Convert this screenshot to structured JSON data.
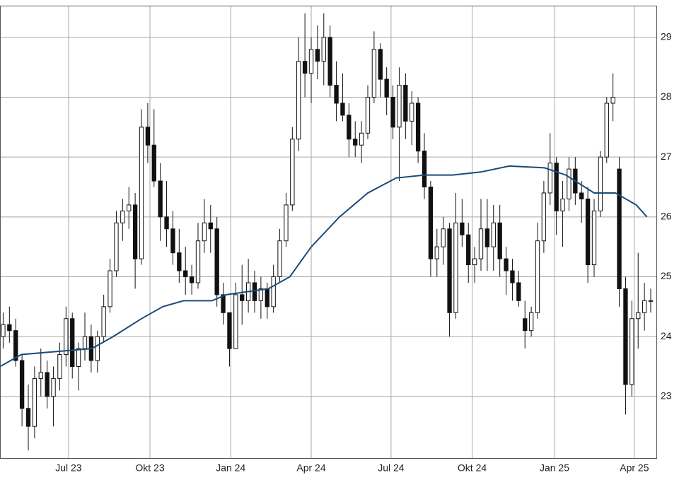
{
  "chart_data": {
    "type": "candlestick",
    "xlim": [
      0,
      104.4
    ],
    "ylim": [
      21.97,
      29.53
    ],
    "grid": true,
    "xticks": [
      {
        "value": 10.9,
        "label": "Jul 23"
      },
      {
        "value": 23.85,
        "label": "Okt 23"
      },
      {
        "value": 36.7,
        "label": "Jan 24"
      },
      {
        "value": 49.5,
        "label": "Apr 24"
      },
      {
        "value": 62.2,
        "label": "Jul 24"
      },
      {
        "value": 75.1,
        "label": "Okt 24"
      },
      {
        "value": 88.2,
        "label": "Jan 25"
      },
      {
        "value": 100.9,
        "label": "Apr 25"
      }
    ],
    "yticks": [
      23,
      24,
      25,
      26,
      27,
      28,
      29
    ],
    "up_color": "#ffffff",
    "down_color": "#111111",
    "x": [
      0.5,
      1.5,
      2.5,
      3.5,
      4.5,
      5.5,
      6.5,
      7.5,
      8.5,
      9.5,
      10.5,
      11.5,
      12.5,
      13.5,
      14.5,
      15.5,
      16.5,
      17.5,
      18.5,
      19.5,
      20.5,
      21.5,
      22.5,
      23.5,
      24.5,
      25.5,
      26.5,
      27.5,
      28.5,
      29.5,
      30.5,
      31.5,
      32.5,
      33.5,
      34.5,
      35.5,
      36.5,
      37.5,
      38.5,
      39.5,
      40.5,
      41.5,
      42.5,
      43.5,
      44.5,
      45.5,
      46.5,
      47.5,
      48.5,
      49.5,
      50.5,
      51.5,
      52.5,
      53.5,
      54.5,
      55.5,
      56.5,
      57.5,
      58.5,
      59.5,
      60.5,
      61.5,
      62.5,
      63.5,
      64.5,
      65.5,
      66.5,
      67.5,
      68.5,
      69.5,
      70.5,
      71.5,
      72.5,
      73.5,
      74.5,
      75.5,
      76.5,
      77.5,
      78.5,
      79.5,
      80.5,
      81.5,
      82.5,
      83.5,
      84.5,
      85.5,
      86.5,
      87.5,
      88.5,
      89.5,
      90.5,
      91.5,
      92.5,
      93.5,
      94.5,
      95.5,
      96.5,
      97.5,
      98.5,
      99.5,
      100.5,
      101.5,
      102.5,
      103.5
    ],
    "open": [
      24.0,
      24.2,
      24.1,
      23.6,
      22.8,
      22.5,
      23.3,
      23.4,
      23.0,
      23.3,
      23.7,
      24.3,
      23.5,
      23.8,
      24.0,
      23.6,
      24.0,
      24.5,
      25.1,
      25.9,
      26.1,
      26.2,
      25.3,
      27.5,
      27.2,
      26.6,
      26.0,
      25.8,
      25.4,
      25.1,
      25.0,
      24.9,
      25.6,
      25.9,
      25.8,
      24.7,
      24.4,
      23.8,
      24.7,
      24.6,
      24.9,
      24.6,
      24.8,
      24.5,
      25.0,
      25.6,
      26.2,
      27.3,
      28.6,
      28.4,
      28.8,
      28.6,
      29.0,
      28.2,
      27.9,
      27.7,
      27.3,
      27.2,
      27.4,
      28.0,
      28.8,
      28.3,
      28.0,
      27.5,
      28.2,
      27.6,
      27.9,
      27.1,
      26.5,
      25.3,
      25.5,
      25.8,
      24.4,
      25.9,
      25.7,
      25.2,
      25.3,
      25.8,
      25.5,
      25.9,
      25.3,
      25.1,
      24.9,
      24.3,
      24.1,
      24.4,
      25.6,
      26.4,
      26.9,
      26.1,
      26.3,
      26.8,
      26.4,
      26.3,
      25.2,
      26.1,
      27.0,
      27.9,
      26.8,
      24.8,
      23.2,
      24.3,
      24.4,
      24.6
    ],
    "high": [
      24.4,
      24.5,
      24.3,
      23.7,
      23.2,
      23.5,
      23.8,
      23.6,
      23.5,
      23.9,
      24.5,
      24.4,
      23.9,
      24.4,
      24.2,
      24.1,
      24.7,
      25.3,
      26.1,
      26.3,
      26.5,
      26.4,
      27.8,
      27.9,
      27.8,
      26.9,
      26.6,
      26.1,
      25.8,
      25.5,
      25.2,
      25.9,
      26.3,
      26.2,
      26.0,
      24.9,
      24.4,
      24.9,
      25.2,
      25.3,
      25.1,
      25.0,
      24.9,
      25.2,
      25.8,
      26.4,
      27.5,
      29.0,
      29.4,
      29.0,
      29.2,
      29.4,
      29.2,
      28.6,
      28.4,
      27.9,
      27.6,
      27.6,
      28.2,
      29.1,
      28.9,
      28.5,
      28.2,
      28.5,
      28.4,
      28.1,
      28.0,
      27.4,
      26.6,
      25.8,
      26.0,
      25.9,
      26.4,
      26.3,
      25.9,
      25.5,
      26.3,
      26.3,
      26.2,
      26.2,
      25.5,
      25.3,
      25.1,
      24.6,
      24.5,
      25.9,
      26.6,
      27.4,
      27.0,
      26.6,
      27.0,
      27.0,
      26.6,
      26.5,
      26.3,
      27.1,
      28.0,
      28.4,
      27.0,
      25.0,
      24.6,
      25.4,
      24.9,
      24.8
    ],
    "low": [
      23.8,
      23.9,
      23.5,
      22.5,
      22.1,
      22.3,
      23.0,
      22.8,
      22.5,
      23.1,
      23.5,
      23.3,
      23.1,
      23.6,
      23.4,
      23.4,
      23.9,
      24.4,
      25.0,
      25.6,
      25.8,
      24.8,
      25.2,
      26.9,
      26.5,
      25.6,
      25.5,
      25.2,
      24.9,
      24.7,
      24.7,
      24.8,
      25.4,
      25.4,
      24.5,
      24.2,
      23.5,
      23.8,
      24.2,
      24.4,
      24.4,
      24.3,
      24.3,
      24.4,
      24.9,
      25.5,
      26.1,
      27.1,
      28.0,
      27.9,
      28.3,
      28.2,
      28.0,
      27.6,
      27.6,
      27.0,
      27.0,
      26.9,
      27.3,
      27.9,
      28.0,
      27.7,
      27.3,
      26.6,
      27.3,
      27.2,
      26.9,
      26.3,
      25.0,
      25.0,
      25.2,
      24.0,
      24.3,
      25.5,
      24.9,
      24.9,
      25.1,
      25.1,
      25.1,
      25.0,
      24.7,
      24.6,
      24.5,
      23.8,
      24.0,
      24.3,
      25.4,
      26.2,
      25.7,
      25.5,
      26.1,
      26.2,
      25.9,
      24.9,
      25.0,
      26.0,
      26.9,
      27.6,
      24.5,
      22.7,
      23.0,
      23.8,
      24.1,
      24.4
    ],
    "close": [
      24.2,
      24.1,
      23.6,
      22.8,
      22.5,
      23.3,
      23.4,
      23.0,
      23.3,
      23.7,
      24.3,
      23.5,
      23.8,
      24.0,
      23.6,
      24.0,
      24.5,
      25.1,
      25.9,
      26.1,
      26.2,
      25.3,
      27.5,
      27.2,
      26.6,
      26.0,
      25.8,
      25.4,
      25.1,
      25.0,
      24.9,
      25.6,
      25.9,
      25.8,
      24.7,
      24.4,
      23.8,
      24.7,
      24.6,
      24.9,
      24.6,
      24.8,
      24.5,
      25.0,
      25.6,
      26.2,
      27.3,
      28.6,
      28.4,
      28.8,
      28.6,
      29.0,
      28.2,
      27.9,
      27.7,
      27.3,
      27.2,
      27.4,
      28.0,
      28.8,
      28.3,
      28.0,
      27.5,
      28.2,
      27.6,
      27.9,
      27.1,
      26.5,
      25.3,
      25.5,
      25.8,
      24.4,
      25.9,
      25.7,
      25.2,
      25.3,
      25.8,
      25.5,
      25.9,
      25.3,
      25.1,
      24.9,
      24.6,
      24.1,
      24.4,
      25.6,
      26.4,
      26.9,
      26.1,
      26.3,
      26.8,
      26.4,
      26.3,
      25.2,
      26.1,
      27.0,
      27.9,
      28.0,
      24.8,
      23.2,
      24.3,
      24.4,
      24.6,
      24.6
    ],
    "lines": [
      {
        "color": "#1b4a78",
        "x": [
          0,
          3.4,
          9,
          14.6,
          18,
          22.5,
          25.9,
          29.2,
          33.7,
          36,
          42.7,
          46.1,
          49.5,
          54,
          58.5,
          63,
          67.5,
          72,
          76.5,
          81,
          86.6,
          90,
          94.5,
          97.9,
          101.2,
          102.9
        ],
        "values": [
          23.5,
          23.7,
          23.75,
          23.8,
          24.0,
          24.3,
          24.5,
          24.6,
          24.6,
          24.7,
          24.8,
          25.0,
          25.5,
          26.0,
          26.4,
          26.65,
          26.7,
          26.7,
          26.75,
          26.85,
          26.82,
          26.7,
          26.4,
          26.4,
          26.2,
          26.0
        ]
      }
    ]
  }
}
